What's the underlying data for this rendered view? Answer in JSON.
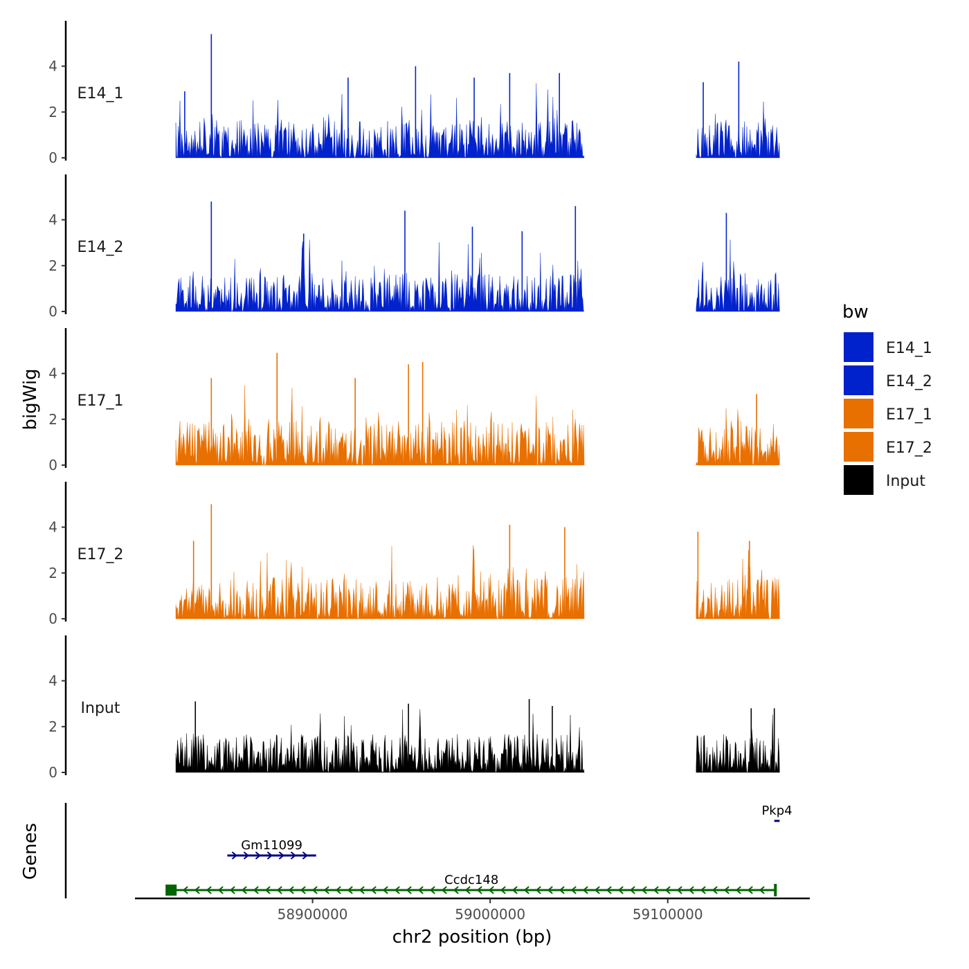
{
  "chart_data": {
    "type": "area",
    "xlabel": "chr2 position (bp)",
    "ylabel": "bigWig",
    "genes_label": "Genes",
    "x_ticks": [
      58900000,
      59000000,
      59100000
    ],
    "x_tick_labels": [
      "58900000",
      "59000000",
      "59100000"
    ],
    "xlim": [
      58800000,
      59180000
    ],
    "ylim": [
      0,
      5.8
    ],
    "y_ticks": [
      0,
      2,
      4
    ],
    "y_tick_labels": [
      "0",
      "2",
      "4"
    ],
    "covered_ranges": [
      [
        58823000,
        59053000
      ],
      [
        59116000,
        59163000
      ]
    ],
    "tracks": [
      {
        "name": "E14_1",
        "label": "E14_1",
        "color": "#0022cc",
        "base": 1.2,
        "spread": 0.9,
        "seed": 11,
        "peaks": [
          {
            "x": 58843000,
            "y": 5.4
          },
          {
            "x": 58828000,
            "y": 2.9
          },
          {
            "x": 58920000,
            "y": 3.5
          },
          {
            "x": 58958000,
            "y": 4.0
          },
          {
            "x": 58991000,
            "y": 3.5
          },
          {
            "x": 59011000,
            "y": 3.7
          },
          {
            "x": 59039000,
            "y": 3.7
          },
          {
            "x": 59140000,
            "y": 4.2
          },
          {
            "x": 59120000,
            "y": 3.3
          }
        ]
      },
      {
        "name": "E14_2",
        "label": "E14_2",
        "color": "#0022cc",
        "base": 1.2,
        "spread": 0.9,
        "seed": 23,
        "peaks": [
          {
            "x": 58843000,
            "y": 4.8
          },
          {
            "x": 58952000,
            "y": 4.4
          },
          {
            "x": 59048000,
            "y": 4.6
          },
          {
            "x": 58895000,
            "y": 3.4
          },
          {
            "x": 58990000,
            "y": 3.7
          },
          {
            "x": 59133000,
            "y": 4.3
          },
          {
            "x": 59018000,
            "y": 3.5
          }
        ]
      },
      {
        "name": "E17_1",
        "label": "E17_1",
        "color": "#e87000",
        "base": 1.4,
        "spread": 0.8,
        "seed": 37,
        "peaks": [
          {
            "x": 58880000,
            "y": 4.9
          },
          {
            "x": 58962000,
            "y": 4.5
          },
          {
            "x": 58843000,
            "y": 3.8
          },
          {
            "x": 58954000,
            "y": 4.4
          },
          {
            "x": 58924000,
            "y": 3.8
          },
          {
            "x": 59150000,
            "y": 3.1
          }
        ]
      },
      {
        "name": "E17_2",
        "label": "E17_2",
        "color": "#e87000",
        "base": 1.3,
        "spread": 0.8,
        "seed": 41,
        "peaks": [
          {
            "x": 58843000,
            "y": 5.0
          },
          {
            "x": 59011000,
            "y": 4.1
          },
          {
            "x": 59042000,
            "y": 4.0
          },
          {
            "x": 58833000,
            "y": 3.4
          },
          {
            "x": 59117000,
            "y": 3.8
          },
          {
            "x": 59146000,
            "y": 3.4
          }
        ]
      },
      {
        "name": "Input",
        "label": "Input",
        "color": "#000000",
        "base": 1.2,
        "spread": 0.7,
        "seed": 59,
        "peaks": [
          {
            "x": 59022000,
            "y": 3.2
          },
          {
            "x": 58834000,
            "y": 3.1
          },
          {
            "x": 58954000,
            "y": 3.0
          },
          {
            "x": 59035000,
            "y": 2.9
          },
          {
            "x": 59147000,
            "y": 2.8
          },
          {
            "x": 59160000,
            "y": 2.8
          }
        ]
      }
    ],
    "legend": {
      "title": "bw",
      "position": "right",
      "entries": [
        {
          "label": "E14_1",
          "color": "#0022cc"
        },
        {
          "label": "E14_2",
          "color": "#0022cc"
        },
        {
          "label": "E17_1",
          "color": "#e87000"
        },
        {
          "label": "E17_2",
          "color": "#e87000"
        },
        {
          "label": "Input",
          "color": "#000000"
        }
      ]
    },
    "genes": [
      {
        "name": "Gm11099",
        "start": 58852000,
        "end": 58902000,
        "strand": "+",
        "color": "#000080",
        "row": 2
      },
      {
        "name": "Ccdc148",
        "start": 58818000,
        "end": 59161000,
        "strand": "-",
        "color": "#006400",
        "row": 1
      },
      {
        "name": "Pkp4",
        "start": 59160000,
        "end": 59163000,
        "strand": "+",
        "color": "#000080",
        "row": 3
      }
    ]
  }
}
